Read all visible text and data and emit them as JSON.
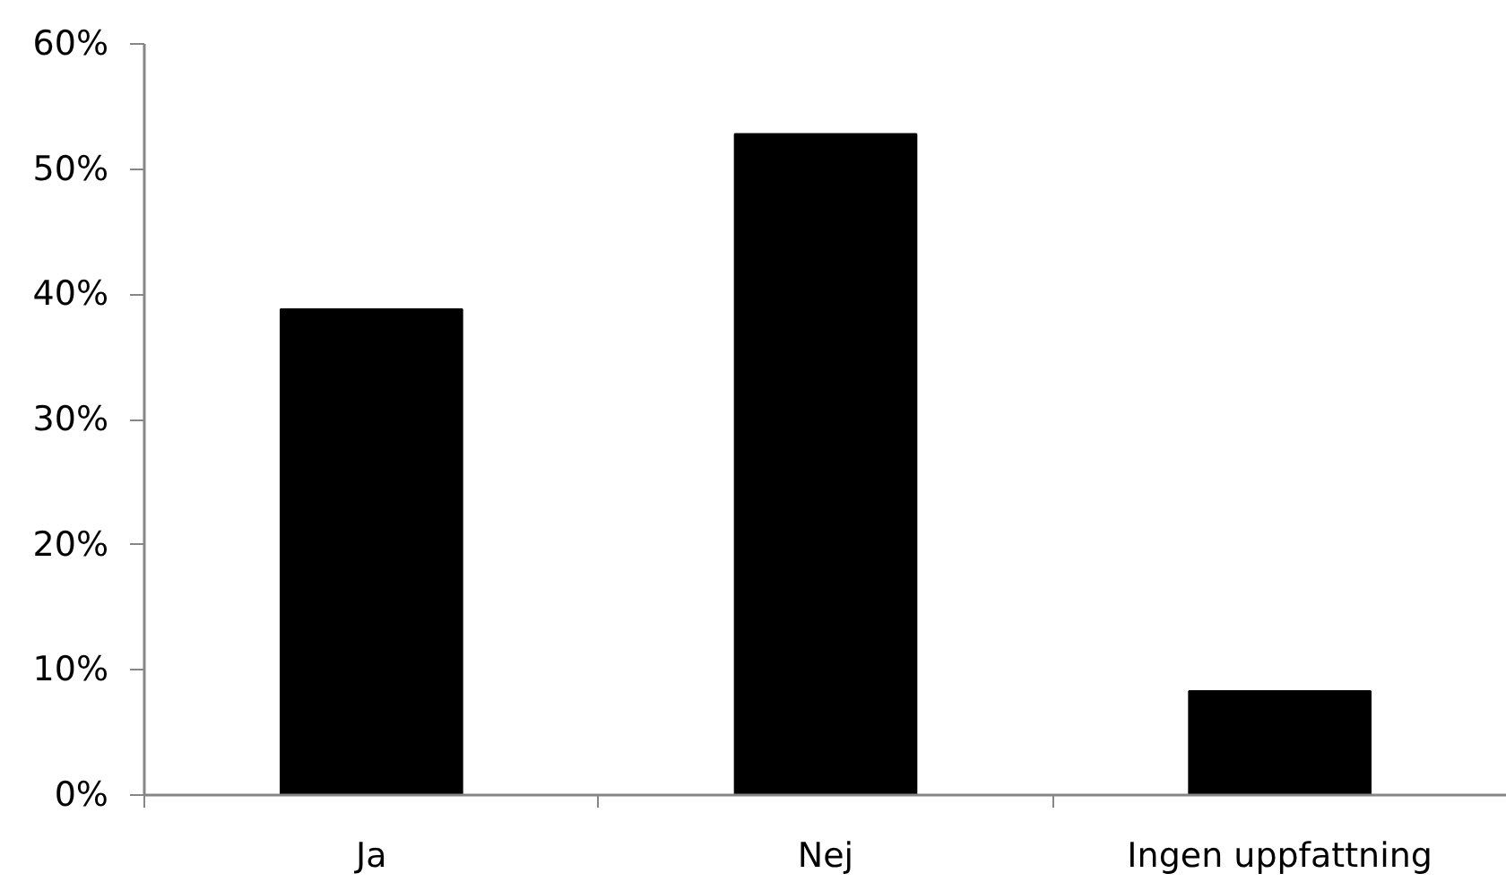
{
  "chart_data": {
    "type": "bar",
    "categories": [
      "Ja",
      "Nej",
      "Ingen uppfattning"
    ],
    "values": [
      38.8,
      52.8,
      8.3
    ],
    "color": "#000000",
    "ylim": [
      0,
      60
    ],
    "yticks": [
      {
        "value": 0,
        "label": "0%"
      },
      {
        "value": 10,
        "label": "10%"
      },
      {
        "value": 20,
        "label": "20%"
      },
      {
        "value": 30,
        "label": "30%"
      },
      {
        "value": 40,
        "label": "40%"
      },
      {
        "value": 50,
        "label": "50%"
      },
      {
        "value": 60,
        "label": "60%"
      }
    ],
    "grid": false
  }
}
